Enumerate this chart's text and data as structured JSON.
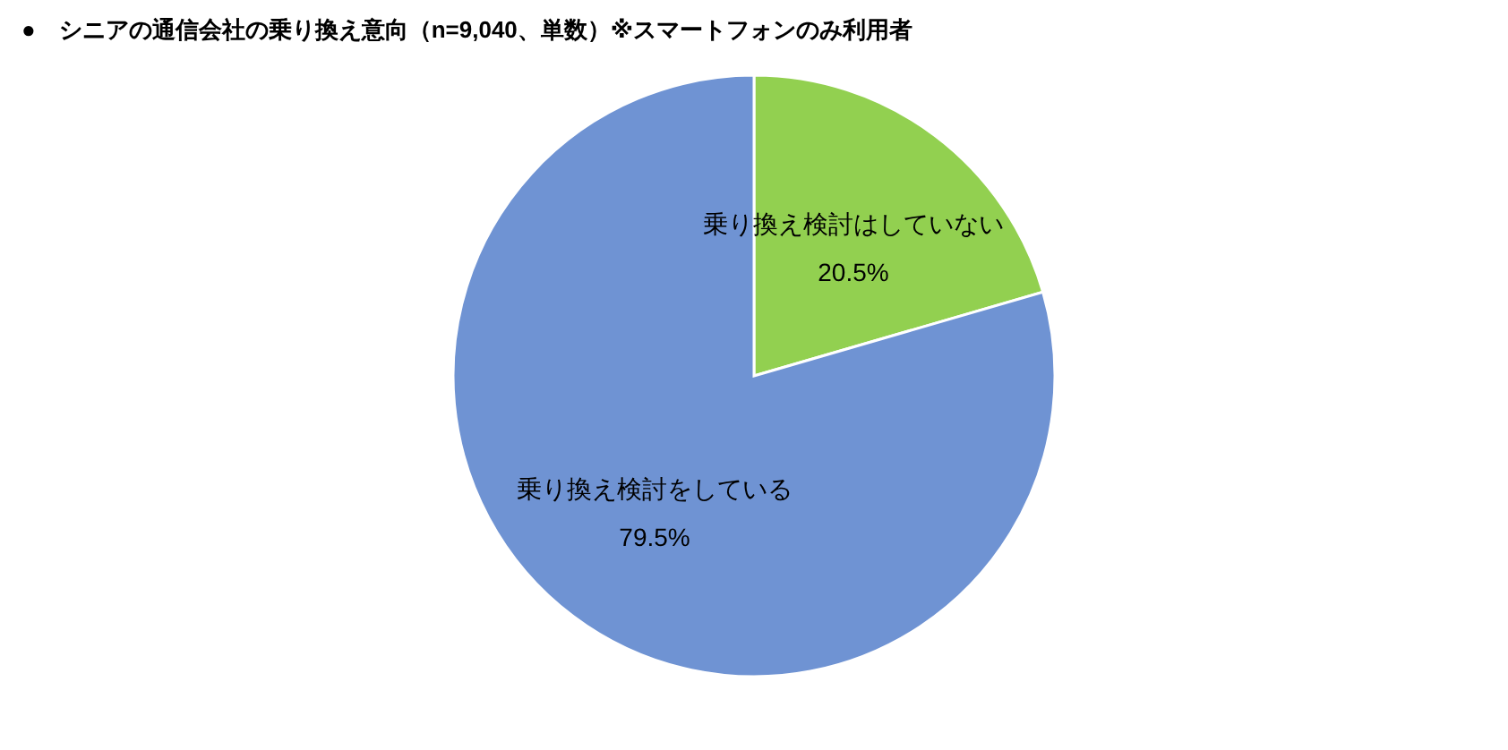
{
  "chart_data": {
    "type": "pie",
    "title": "●　シニアの通信会社の乗り換え意向（n=9,040、単数）※スマートフォンのみ利用者",
    "categories": [
      "乗り換え検討はしていない",
      "乗り換え検討をしている"
    ],
    "values": [
      20.5,
      79.5
    ],
    "value_labels": [
      "20.5%",
      "79.5%"
    ],
    "colors": [
      "#92d050",
      "#6f93d3"
    ]
  }
}
